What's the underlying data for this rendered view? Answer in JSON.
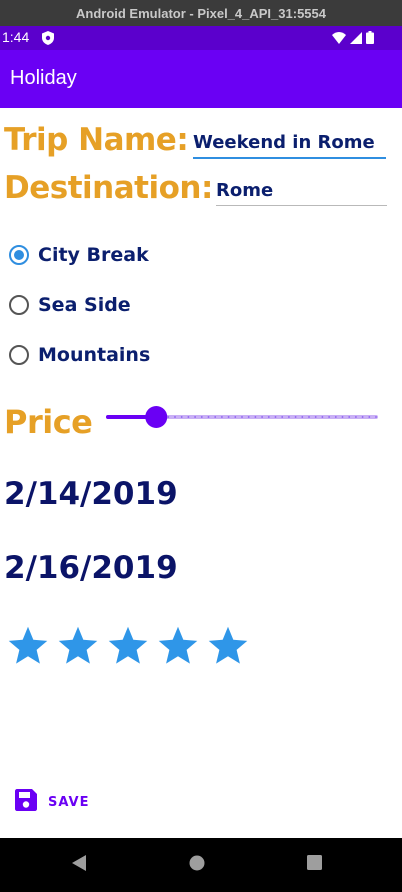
{
  "emulator": {
    "title": "Android Emulator - Pixel_4_API_31:5554"
  },
  "status_bar": {
    "time": "1:44"
  },
  "app_bar": {
    "title": "Holiday"
  },
  "form": {
    "trip_name_label": "Trip Name:",
    "trip_name_value": "Weekend in Rome",
    "destination_label": "Destination:",
    "destination_value": "Rome",
    "trip_types": [
      {
        "label": "City Break",
        "selected": true
      },
      {
        "label": "Sea Side",
        "selected": false
      },
      {
        "label": "Mountains",
        "selected": false
      }
    ],
    "price_label": "Price",
    "price_slider_fraction": 0.18,
    "start_date": "2/14/2019",
    "end_date": "2/16/2019",
    "rating": 5,
    "rating_max": 5,
    "save_label": "SAVE"
  },
  "colors": {
    "accent": "#6a00f4",
    "label": "#e6a026",
    "text": "#0b1f6e",
    "star": "#2f96e8"
  },
  "icons": {
    "status": [
      "vpn-shield-icon",
      "wifi-icon",
      "signal-icon",
      "battery-icon"
    ],
    "save": "floppy-disk-icon",
    "nav": [
      "back-icon",
      "home-icon",
      "recents-icon"
    ]
  }
}
